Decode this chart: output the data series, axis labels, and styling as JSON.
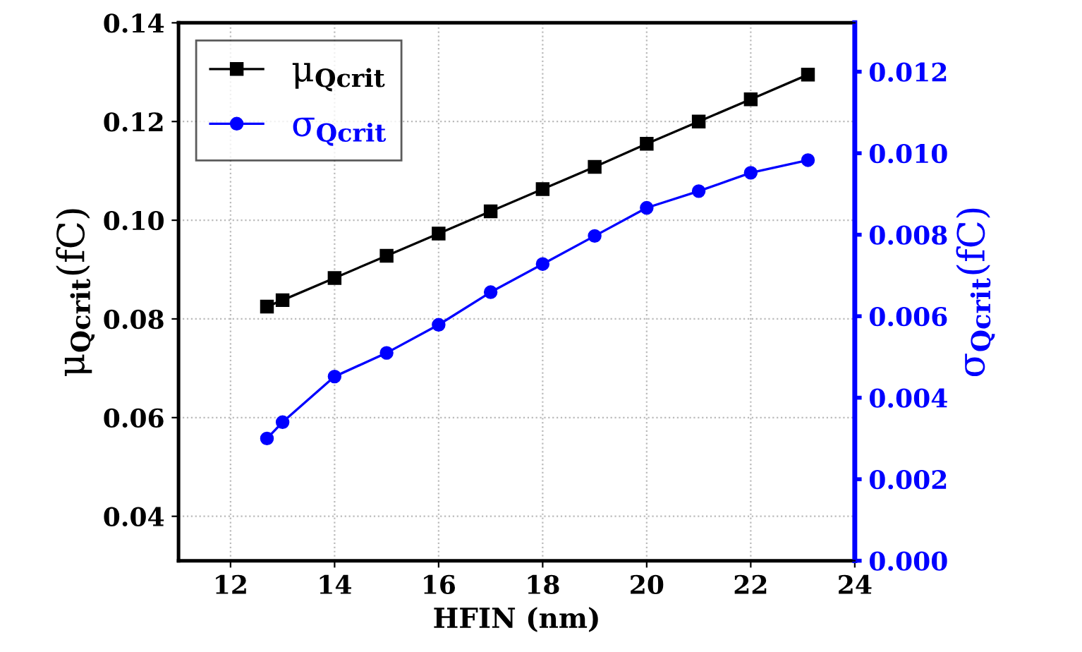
{
  "chart_data": {
    "type": "line",
    "xlabel": "HFIN (nm)",
    "ylabel": "μ$_{Qcrit}$(fC)",
    "y2label": "σ$_{Qcrit}$(fC)",
    "xlim": [
      11,
      24
    ],
    "xticks": [
      12,
      14,
      16,
      18,
      20,
      22,
      24
    ],
    "ylim": [
      0.031,
      0.14
    ],
    "yticks": [
      0.04,
      0.06,
      0.08,
      {
        "value": 0.1,
        "label": "0.10"
      },
      0.12,
      0.14
    ],
    "y2lim": [
      0,
      0.0132
    ],
    "y2ticks": [
      {
        "value": 0,
        "label": "0.000"
      },
      0.002,
      0.004,
      0.006,
      0.008,
      {
        "value": 0.01,
        "label": "0.010"
      },
      0.012
    ],
    "grid": true,
    "legend": "top left",
    "line_style": "solid",
    "series": [
      {
        "name": "μ$_{Qcrit}$",
        "color": "#000000",
        "marker": "square",
        "x": [
          12.7,
          13,
          14,
          15,
          16,
          17,
          18,
          19,
          20,
          21,
          22,
          23.1
        ],
        "values": [
          0.0825,
          0.0838,
          0.0883,
          0.0928,
          0.0973,
          0.1018,
          0.1063,
          0.1108,
          0.1155,
          0.12,
          0.1245,
          0.1295
        ]
      },
      {
        "name": "σ$_{Qcrit}$",
        "color": "#0000ff",
        "marker": "circle",
        "axis": "y2",
        "x": [
          12.7,
          13,
          14,
          15,
          16,
          17,
          18,
          19,
          20,
          21,
          22,
          23.1
        ],
        "values": [
          0.003,
          0.0034,
          0.00452,
          0.0051,
          0.00579,
          0.00659,
          0.00728,
          0.00797,
          0.00866,
          0.00907,
          0.00952,
          0.00983
        ]
      }
    ]
  }
}
